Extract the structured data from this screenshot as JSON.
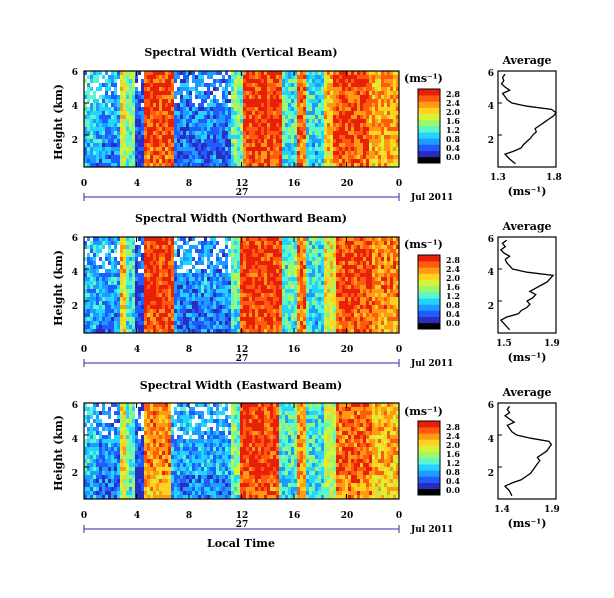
{
  "chart_data": [
    {
      "type": "heatmap",
      "title": "Spectral Width (Vertical Beam)",
      "ylabel": "Height (km)",
      "x_ticks": [
        "0",
        "4",
        "8",
        "12",
        "16",
        "20",
        "0"
      ],
      "y_ticks": [
        "6",
        "4",
        "2"
      ],
      "day_label": "27",
      "date_label": "Jul 2011",
      "xlim_hours": [
        0,
        24
      ],
      "ylim_km": [
        0,
        6
      ],
      "colorbar": {
        "unit": "(ms⁻¹)",
        "ticks": [
          "2.8",
          "2.4",
          "2.0",
          "1.6",
          "1.2",
          "0.8",
          "0.4",
          "0.0"
        ],
        "range": [
          0,
          3.0
        ],
        "colors": [
          "#000000",
          "#2c2cc0",
          "#1f5bff",
          "#1f9bff",
          "#22d4ff",
          "#5cf7c8",
          "#9cf76b",
          "#d8f23a",
          "#ffd21f",
          "#ff9a14",
          "#ff5a0e",
          "#e8200a"
        ]
      },
      "bands": [
        {
          "h": [
            0.0,
            1.0
          ],
          "v": 1.1
        },
        {
          "h": [
            1.0,
            2.7
          ],
          "v": 0.9
        },
        {
          "h": [
            2.7,
            3.2
          ],
          "v": 2.0
        },
        {
          "h": [
            3.2,
            3.8
          ],
          "v": 1.5
        },
        {
          "h": [
            3.8,
            4.6
          ],
          "v": 0.4
        },
        {
          "h": [
            4.6,
            6.8
          ],
          "v": 2.85
        },
        {
          "h": [
            6.8,
            11.2
          ],
          "v": 0.7
        },
        {
          "h": [
            11.2,
            12.2
          ],
          "v": 1.5
        },
        {
          "h": [
            12.2,
            15.0
          ],
          "v": 2.9
        },
        {
          "h": [
            15.0,
            16.2
          ],
          "v": 1.3
        },
        {
          "h": [
            16.2,
            17.0
          ],
          "v": 2.7
        },
        {
          "h": [
            17.0,
            18.2
          ],
          "v": 1.2
        },
        {
          "h": [
            18.2,
            19.0
          ],
          "v": 2.3
        },
        {
          "h": [
            19.0,
            21.8
          ],
          "v": 2.8
        },
        {
          "h": [
            21.8,
            24.0
          ],
          "v": 2.4
        }
      ],
      "average": {
        "title": "Average",
        "xlabel": "(ms⁻¹)",
        "x_ticks": [
          "1.3",
          "1.8"
        ],
        "y_ticks": [
          "6",
          "4",
          "2"
        ],
        "xlim": [
          1.3,
          1.8
        ],
        "profile_height_km": [
          0.2,
          0.5,
          0.8,
          1.0,
          1.2,
          1.4,
          1.6,
          1.8,
          2.0,
          2.2,
          2.4,
          2.6,
          2.8,
          3.0,
          3.2,
          3.4,
          3.6,
          3.8,
          4.0,
          4.2,
          4.4,
          4.6,
          4.8,
          5.0,
          5.2,
          5.4,
          5.6,
          5.8
        ],
        "profile_value": [
          1.45,
          1.4,
          1.36,
          1.44,
          1.5,
          1.52,
          1.55,
          1.58,
          1.6,
          1.63,
          1.62,
          1.66,
          1.7,
          1.74,
          1.78,
          1.8,
          1.76,
          1.55,
          1.42,
          1.38,
          1.36,
          1.34,
          1.4,
          1.36,
          1.33,
          1.35,
          1.34,
          1.36
        ]
      }
    },
    {
      "type": "heatmap",
      "title": "Spectral Width (Northward Beam)",
      "ylabel": "Height (km)",
      "x_ticks": [
        "0",
        "4",
        "8",
        "12",
        "16",
        "20",
        "0"
      ],
      "y_ticks": [
        "6",
        "4",
        "2"
      ],
      "day_label": "27",
      "date_label": "Jul 2011",
      "xlim_hours": [
        0,
        24
      ],
      "ylim_km": [
        0,
        6
      ],
      "colorbar": {
        "unit": "(ms⁻¹)",
        "ticks": [
          "2.8",
          "2.4",
          "2.0",
          "1.6",
          "1.2",
          "0.8",
          "0.4",
          "0.0"
        ],
        "range": [
          0,
          3.0
        ],
        "colors": [
          "#000000",
          "#2c2cc0",
          "#1f5bff",
          "#1f9bff",
          "#22d4ff",
          "#5cf7c8",
          "#9cf76b",
          "#d8f23a",
          "#ffd21f",
          "#ff9a14",
          "#ff5a0e",
          "#e8200a"
        ]
      },
      "bands": [
        {
          "h": [
            0.0,
            1.0
          ],
          "v": 1.0
        },
        {
          "h": [
            1.0,
            2.7
          ],
          "v": 0.9
        },
        {
          "h": [
            2.7,
            3.2
          ],
          "v": 2.2
        },
        {
          "h": [
            3.2,
            3.8
          ],
          "v": 1.3
        },
        {
          "h": [
            3.8,
            4.6
          ],
          "v": 0.5
        },
        {
          "h": [
            4.6,
            6.8
          ],
          "v": 2.85
        },
        {
          "h": [
            6.8,
            11.2
          ],
          "v": 0.8
        },
        {
          "h": [
            11.2,
            12.0
          ],
          "v": 1.4
        },
        {
          "h": [
            12.0,
            15.0
          ],
          "v": 2.9
        },
        {
          "h": [
            15.0,
            16.2
          ],
          "v": 1.4
        },
        {
          "h": [
            16.2,
            17.0
          ],
          "v": 2.6
        },
        {
          "h": [
            17.0,
            18.4
          ],
          "v": 1.2
        },
        {
          "h": [
            18.4,
            19.2
          ],
          "v": 2.0
        },
        {
          "h": [
            19.2,
            22.0
          ],
          "v": 2.85
        },
        {
          "h": [
            22.0,
            24.0
          ],
          "v": 2.5
        }
      ],
      "average": {
        "title": "Average",
        "xlabel": "(ms⁻¹)",
        "x_ticks": [
          "1.5",
          "1.9"
        ],
        "y_ticks": [
          "6",
          "4",
          "2"
        ],
        "xlim": [
          1.5,
          1.9
        ],
        "profile_height_km": [
          0.2,
          0.5,
          0.8,
          1.0,
          1.2,
          1.4,
          1.6,
          1.8,
          2.0,
          2.2,
          2.4,
          2.6,
          2.8,
          3.0,
          3.2,
          3.4,
          3.6,
          3.8,
          4.0,
          4.2,
          4.4,
          4.6,
          4.8,
          5.0,
          5.2,
          5.4,
          5.6,
          5.8
        ],
        "profile_value": [
          1.58,
          1.55,
          1.52,
          1.56,
          1.64,
          1.66,
          1.7,
          1.72,
          1.7,
          1.74,
          1.76,
          1.72,
          1.76,
          1.8,
          1.84,
          1.86,
          1.88,
          1.7,
          1.6,
          1.58,
          1.56,
          1.55,
          1.58,
          1.54,
          1.52,
          1.55,
          1.53,
          1.56
        ]
      }
    },
    {
      "type": "heatmap",
      "title": "Spectral Width (Eastward Beam)",
      "ylabel": "Height (km)",
      "x_ticks": [
        "0",
        "4",
        "8",
        "12",
        "16",
        "20",
        "0"
      ],
      "y_ticks": [
        "6",
        "4",
        "2"
      ],
      "day_label": "27",
      "date_label": "Jul 2011",
      "xlabel": "Local Time",
      "xlim_hours": [
        0,
        24
      ],
      "ylim_km": [
        0,
        6
      ],
      "colorbar": {
        "unit": "(ms⁻¹)",
        "ticks": [
          "2.8",
          "2.4",
          "2.0",
          "1.6",
          "1.2",
          "0.8",
          "0.4",
          "0.0"
        ],
        "range": [
          0,
          3.0
        ],
        "colors": [
          "#000000",
          "#2c2cc0",
          "#1f5bff",
          "#1f9bff",
          "#22d4ff",
          "#5cf7c8",
          "#9cf76b",
          "#d8f23a",
          "#ffd21f",
          "#ff9a14",
          "#ff5a0e",
          "#e8200a"
        ]
      },
      "bands": [
        {
          "h": [
            0.0,
            1.0
          ],
          "v": 1.1
        },
        {
          "h": [
            1.0,
            2.7
          ],
          "v": 0.8
        },
        {
          "h": [
            2.7,
            3.2
          ],
          "v": 2.0
        },
        {
          "h": [
            3.2,
            3.8
          ],
          "v": 1.4
        },
        {
          "h": [
            3.8,
            4.6
          ],
          "v": 0.5
        },
        {
          "h": [
            4.6,
            6.6
          ],
          "v": 2.5
        },
        {
          "h": [
            6.6,
            11.2
          ],
          "v": 0.9
        },
        {
          "h": [
            11.2,
            12.0
          ],
          "v": 1.5
        },
        {
          "h": [
            12.0,
            14.8
          ],
          "v": 2.9
        },
        {
          "h": [
            14.8,
            16.2
          ],
          "v": 1.3
        },
        {
          "h": [
            16.2,
            17.0
          ],
          "v": 2.5
        },
        {
          "h": [
            17.0,
            18.4
          ],
          "v": 1.3
        },
        {
          "h": [
            18.4,
            19.2
          ],
          "v": 1.8
        },
        {
          "h": [
            19.2,
            22.0
          ],
          "v": 2.7
        },
        {
          "h": [
            22.0,
            24.0
          ],
          "v": 2.3
        }
      ],
      "average": {
        "title": "Average",
        "xlabel": "(ms⁻¹)",
        "x_ticks": [
          "1.4",
          "1.9"
        ],
        "y_ticks": [
          "6",
          "4",
          "2"
        ],
        "xlim": [
          1.4,
          1.9
        ],
        "profile_height_km": [
          0.2,
          0.5,
          0.8,
          1.0,
          1.2,
          1.4,
          1.6,
          1.8,
          2.0,
          2.2,
          2.4,
          2.6,
          2.8,
          3.0,
          3.2,
          3.4,
          3.6,
          3.8,
          4.0,
          4.2,
          4.4,
          4.6,
          4.8,
          5.0,
          5.2,
          5.4,
          5.6,
          5.8
        ],
        "profile_value": [
          1.52,
          1.5,
          1.46,
          1.52,
          1.6,
          1.64,
          1.68,
          1.7,
          1.72,
          1.74,
          1.76,
          1.74,
          1.78,
          1.82,
          1.84,
          1.86,
          1.84,
          1.68,
          1.56,
          1.52,
          1.5,
          1.48,
          1.54,
          1.5,
          1.46,
          1.5,
          1.48,
          1.5
        ]
      }
    }
  ]
}
